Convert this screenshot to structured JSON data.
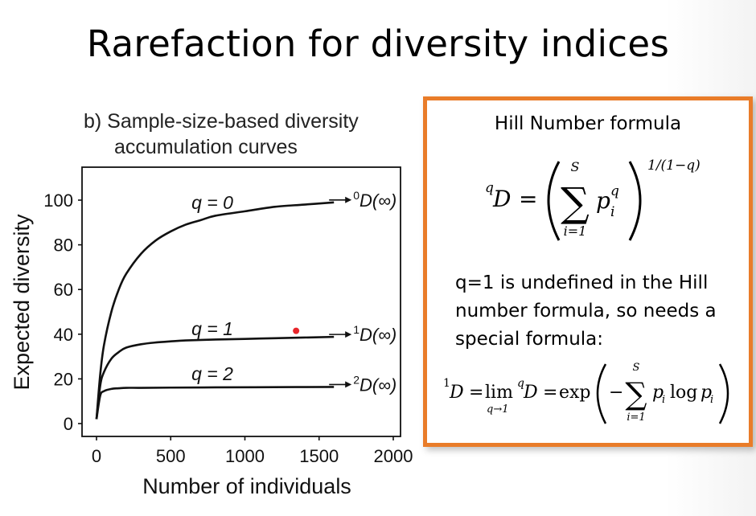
{
  "slide": {
    "title": "Rarefaction for diversity indices"
  },
  "chart_data": {
    "type": "line",
    "title_lines": [
      "b) Sample-size-based diversity",
      "accumulation curves"
    ],
    "xlabel": "Number of individuals",
    "ylabel": "Expected diversity",
    "xlim": [
      0,
      2000
    ],
    "ylim": [
      0,
      100
    ],
    "x_ticks": [
      "0",
      "500",
      "1000",
      "1500",
      "2000"
    ],
    "y_ticks": [
      "0",
      "20",
      "40",
      "60",
      "80",
      "100"
    ],
    "x_tick_values": [
      0,
      500,
      1000,
      1500,
      2000
    ],
    "y_tick_values": [
      0,
      20,
      40,
      60,
      80,
      100
    ],
    "grid": false,
    "series": [
      {
        "name": "q = 0",
        "asymptote_label": "0D(∞)",
        "x": [
          0,
          25,
          50,
          100,
          150,
          200,
          300,
          400,
          500,
          600,
          700,
          800,
          1000,
          1200,
          1400,
          1600
        ],
        "values": [
          2,
          22,
          35,
          50,
          60,
          67,
          76,
          82,
          86,
          89,
          91,
          93,
          95,
          97,
          98,
          99
        ]
      },
      {
        "name": "q = 1",
        "asymptote_label": "1D(∞)",
        "x": [
          0,
          25,
          50,
          100,
          150,
          200,
          300,
          400,
          500,
          600,
          800,
          1000,
          1200,
          1400,
          1600
        ],
        "values": [
          2,
          17,
          23,
          29,
          32,
          34,
          35.5,
          36.3,
          36.8,
          37.2,
          37.6,
          37.9,
          38.2,
          38.5,
          38.8
        ]
      },
      {
        "name": "q = 2",
        "asymptote_label": "2D(∞)",
        "x": [
          0,
          25,
          50,
          100,
          150,
          200,
          300,
          500,
          800,
          1200,
          1600
        ],
        "values": [
          2,
          12.5,
          14.5,
          15.5,
          15.8,
          16,
          16,
          16.1,
          16.2,
          16.3,
          16.4
        ]
      }
    ],
    "marker_point": {
      "x": 1345,
      "y": 41.5,
      "color": "#e8262b"
    }
  },
  "formula_box": {
    "heading": "Hill Number formula",
    "border_color": "#e97c29",
    "note": "q=1 is undefined in the Hill number formula, so needs a special formula:",
    "hill": {
      "lhs_sup": "q",
      "lhs": "D",
      "eq": "=",
      "sum_top": "S",
      "sum_bottom": "i=1",
      "term": "p",
      "term_sub": "i",
      "term_sup": "q",
      "exponent": "1/(1−q)"
    },
    "shannon": {
      "lhs_sup": "1",
      "lhs": "D",
      "eq1": "=",
      "lim": "lim",
      "lim_sub": "q→1",
      "mid_sup": "q",
      "mid": "D",
      "eq2": "=",
      "exp": "exp",
      "minus": "−",
      "sum_top": "S",
      "sum_bottom": "i=1",
      "term": "p",
      "term_sub": "i",
      "log": "log",
      "term2": "p",
      "term2_sub": "i"
    }
  }
}
